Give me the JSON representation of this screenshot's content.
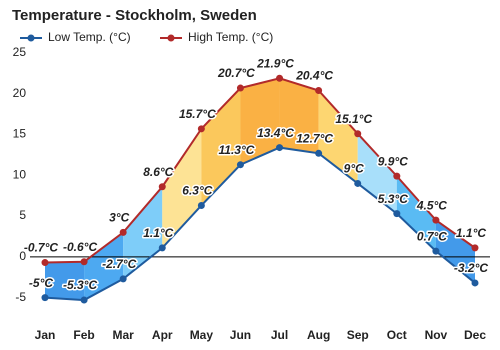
{
  "chart_data": {
    "type": "line",
    "title": "Temperature - Stockholm, Sweden",
    "categories": [
      "Jan",
      "Feb",
      "Mar",
      "Apr",
      "May",
      "Jun",
      "Jul",
      "Aug",
      "Sep",
      "Oct",
      "Nov",
      "Dec"
    ],
    "series": [
      {
        "name": "Low Temp. (°C)",
        "color": "#1f5b9e",
        "values": [
          -5,
          -5.3,
          -2.7,
          1.1,
          6.3,
          11.3,
          13.4,
          12.7,
          9,
          5.3,
          0.7,
          -3.2
        ],
        "value_labels": [
          "-5°C",
          "-5.3°C",
          "-2.7°C",
          "1.1°C",
          "6.3°C",
          "11.3°C",
          "13.4°C",
          "12.7°C",
          "9°C",
          "5.3°C",
          "0.7°C",
          "-3.2°C"
        ]
      },
      {
        "name": "High Temp. (°C)",
        "color": "#b22a2a",
        "values": [
          -0.7,
          -0.6,
          3,
          8.6,
          15.7,
          20.7,
          21.9,
          20.4,
          15.1,
          9.9,
          4.5,
          1.1
        ],
        "value_labels": [
          "-0.7°C",
          "-0.6°C",
          "3°C",
          "8.6°C",
          "15.7°C",
          "20.7°C",
          "21.9°C",
          "20.4°C",
          "15.1°C",
          "9.9°C",
          "4.5°C",
          "1.1°C"
        ]
      }
    ],
    "area_colors": [
      "#2f8fe8",
      "#3aa0f0",
      "#70c8f8",
      "#fde08a",
      "#fbc24a",
      "#f9a830",
      "#f9a830",
      "#fdd262",
      "#9fdcfa",
      "#48b4f2",
      "#2f8fe8"
    ],
    "ylim": [
      -7.5,
      25
    ],
    "yticks": [
      -5,
      0,
      5,
      10,
      15,
      20,
      25
    ],
    "grid": false
  }
}
